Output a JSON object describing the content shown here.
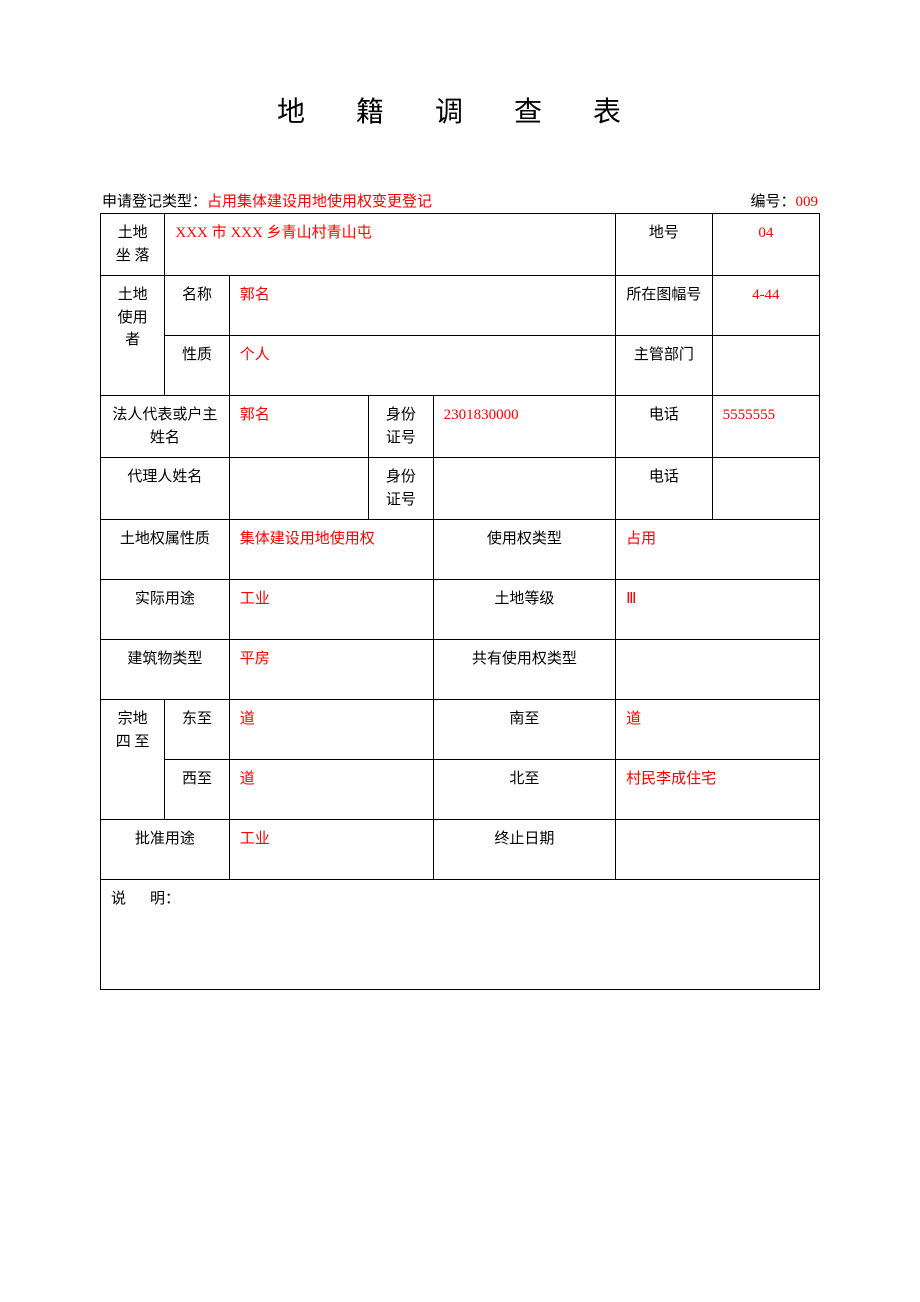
{
  "page": {
    "title": "地 籍 调 查 表",
    "background_color": "#ffffff",
    "text_color": "#000000",
    "accent_color": "#ff0000",
    "border_color": "#000000",
    "title_fontsize": 28,
    "body_fontsize": 15
  },
  "header": {
    "left_label": "申请登记类型：",
    "left_value": "占用集体建设用地使用权变更登记",
    "right_label": "编号：",
    "right_value": "009"
  },
  "form": {
    "land_location": {
      "label": "土地坐 落",
      "value": "XXX 市 XXX 乡青山村青山屯"
    },
    "parcel_no": {
      "label": "地号",
      "value": "04"
    },
    "land_user": {
      "label": "土地使用者",
      "name_label": "名称",
      "name_value": "郭名",
      "map_sheet_label": "所在图幅号",
      "map_sheet_value": "4-44",
      "nature_label": "性质",
      "nature_value": "个人",
      "dept_label": "主管部门",
      "dept_value": ""
    },
    "legal_rep": {
      "label": "法人代表或户主姓名",
      "name_value": "郭名",
      "id_label": "身份证号",
      "id_value": "2301830000",
      "phone_label": "电话",
      "phone_value": "5555555"
    },
    "agent": {
      "label": "代理人姓名",
      "name_value": "",
      "id_label": "身份证号",
      "id_value": "",
      "phone_label": "电话",
      "phone_value": ""
    },
    "ownership": {
      "label": "土地权属性质",
      "value": "集体建设用地使用权",
      "usage_type_label": "使用权类型",
      "usage_type_value": "占用"
    },
    "actual_use": {
      "label": "实际用途",
      "value": "工业",
      "grade_label": "土地等级",
      "grade_value": "Ⅲ"
    },
    "building": {
      "label": "建筑物类型",
      "value": "平房",
      "shared_label": "共有使用权类型",
      "shared_value": ""
    },
    "bounds": {
      "label": "宗地四 至",
      "east_label": "东至",
      "east_value": "道",
      "south_label": "南至",
      "south_value": "道",
      "west_label": "西至",
      "west_value": "道",
      "north_label": "北至",
      "north_value": "村民李成住宅"
    },
    "approved_use": {
      "label": "批准用途",
      "value": "工业",
      "end_date_label": "终止日期",
      "end_date_value": ""
    },
    "explain": {
      "label": "说",
      "label2": "明：",
      "value": ""
    }
  }
}
